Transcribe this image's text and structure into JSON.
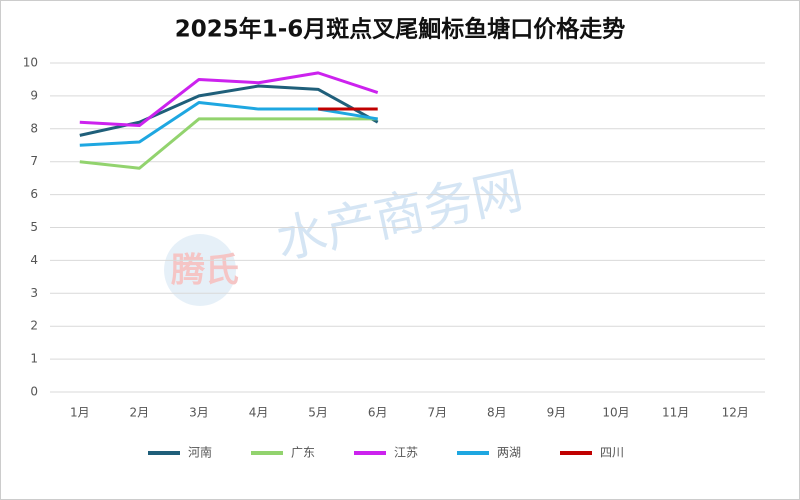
{
  "chart_data": {
    "type": "line",
    "title": "2025年1-6月斑点叉尾鮰标鱼塘口价格走势",
    "watermark": [
      "腾氏",
      "水产商务网"
    ],
    "categories": [
      "1月",
      "2月",
      "3月",
      "4月",
      "5月",
      "6月",
      "7月",
      "8月",
      "9月",
      "10月",
      "11月",
      "12月"
    ],
    "series": [
      {
        "name": "河南",
        "color": "#1f5f7a",
        "values": [
          7.8,
          8.2,
          9.0,
          9.3,
          9.2,
          8.2,
          null,
          null,
          null,
          null,
          null,
          null
        ]
      },
      {
        "name": "广东",
        "color": "#92d36e",
        "values": [
          7.0,
          6.8,
          8.3,
          8.3,
          8.3,
          8.3,
          null,
          null,
          null,
          null,
          null,
          null
        ]
      },
      {
        "name": "江苏",
        "color": "#cc22ee",
        "values": [
          8.2,
          8.1,
          9.5,
          9.4,
          9.7,
          9.1,
          null,
          null,
          null,
          null,
          null,
          null
        ]
      },
      {
        "name": "两湖",
        "color": "#1ea7e1",
        "values": [
          7.5,
          7.6,
          8.8,
          8.6,
          8.6,
          8.3,
          null,
          null,
          null,
          null,
          null,
          null
        ]
      },
      {
        "name": "四川",
        "color": "#c00000",
        "values": [
          null,
          null,
          null,
          null,
          8.6,
          8.6,
          null,
          null,
          null,
          null,
          null,
          null
        ]
      }
    ],
    "ylim": [
      0,
      10
    ],
    "yticks": [
      0,
      1,
      2,
      3,
      4,
      5,
      6,
      7,
      8,
      9,
      10
    ],
    "grid": true,
    "legend": "bottom"
  }
}
